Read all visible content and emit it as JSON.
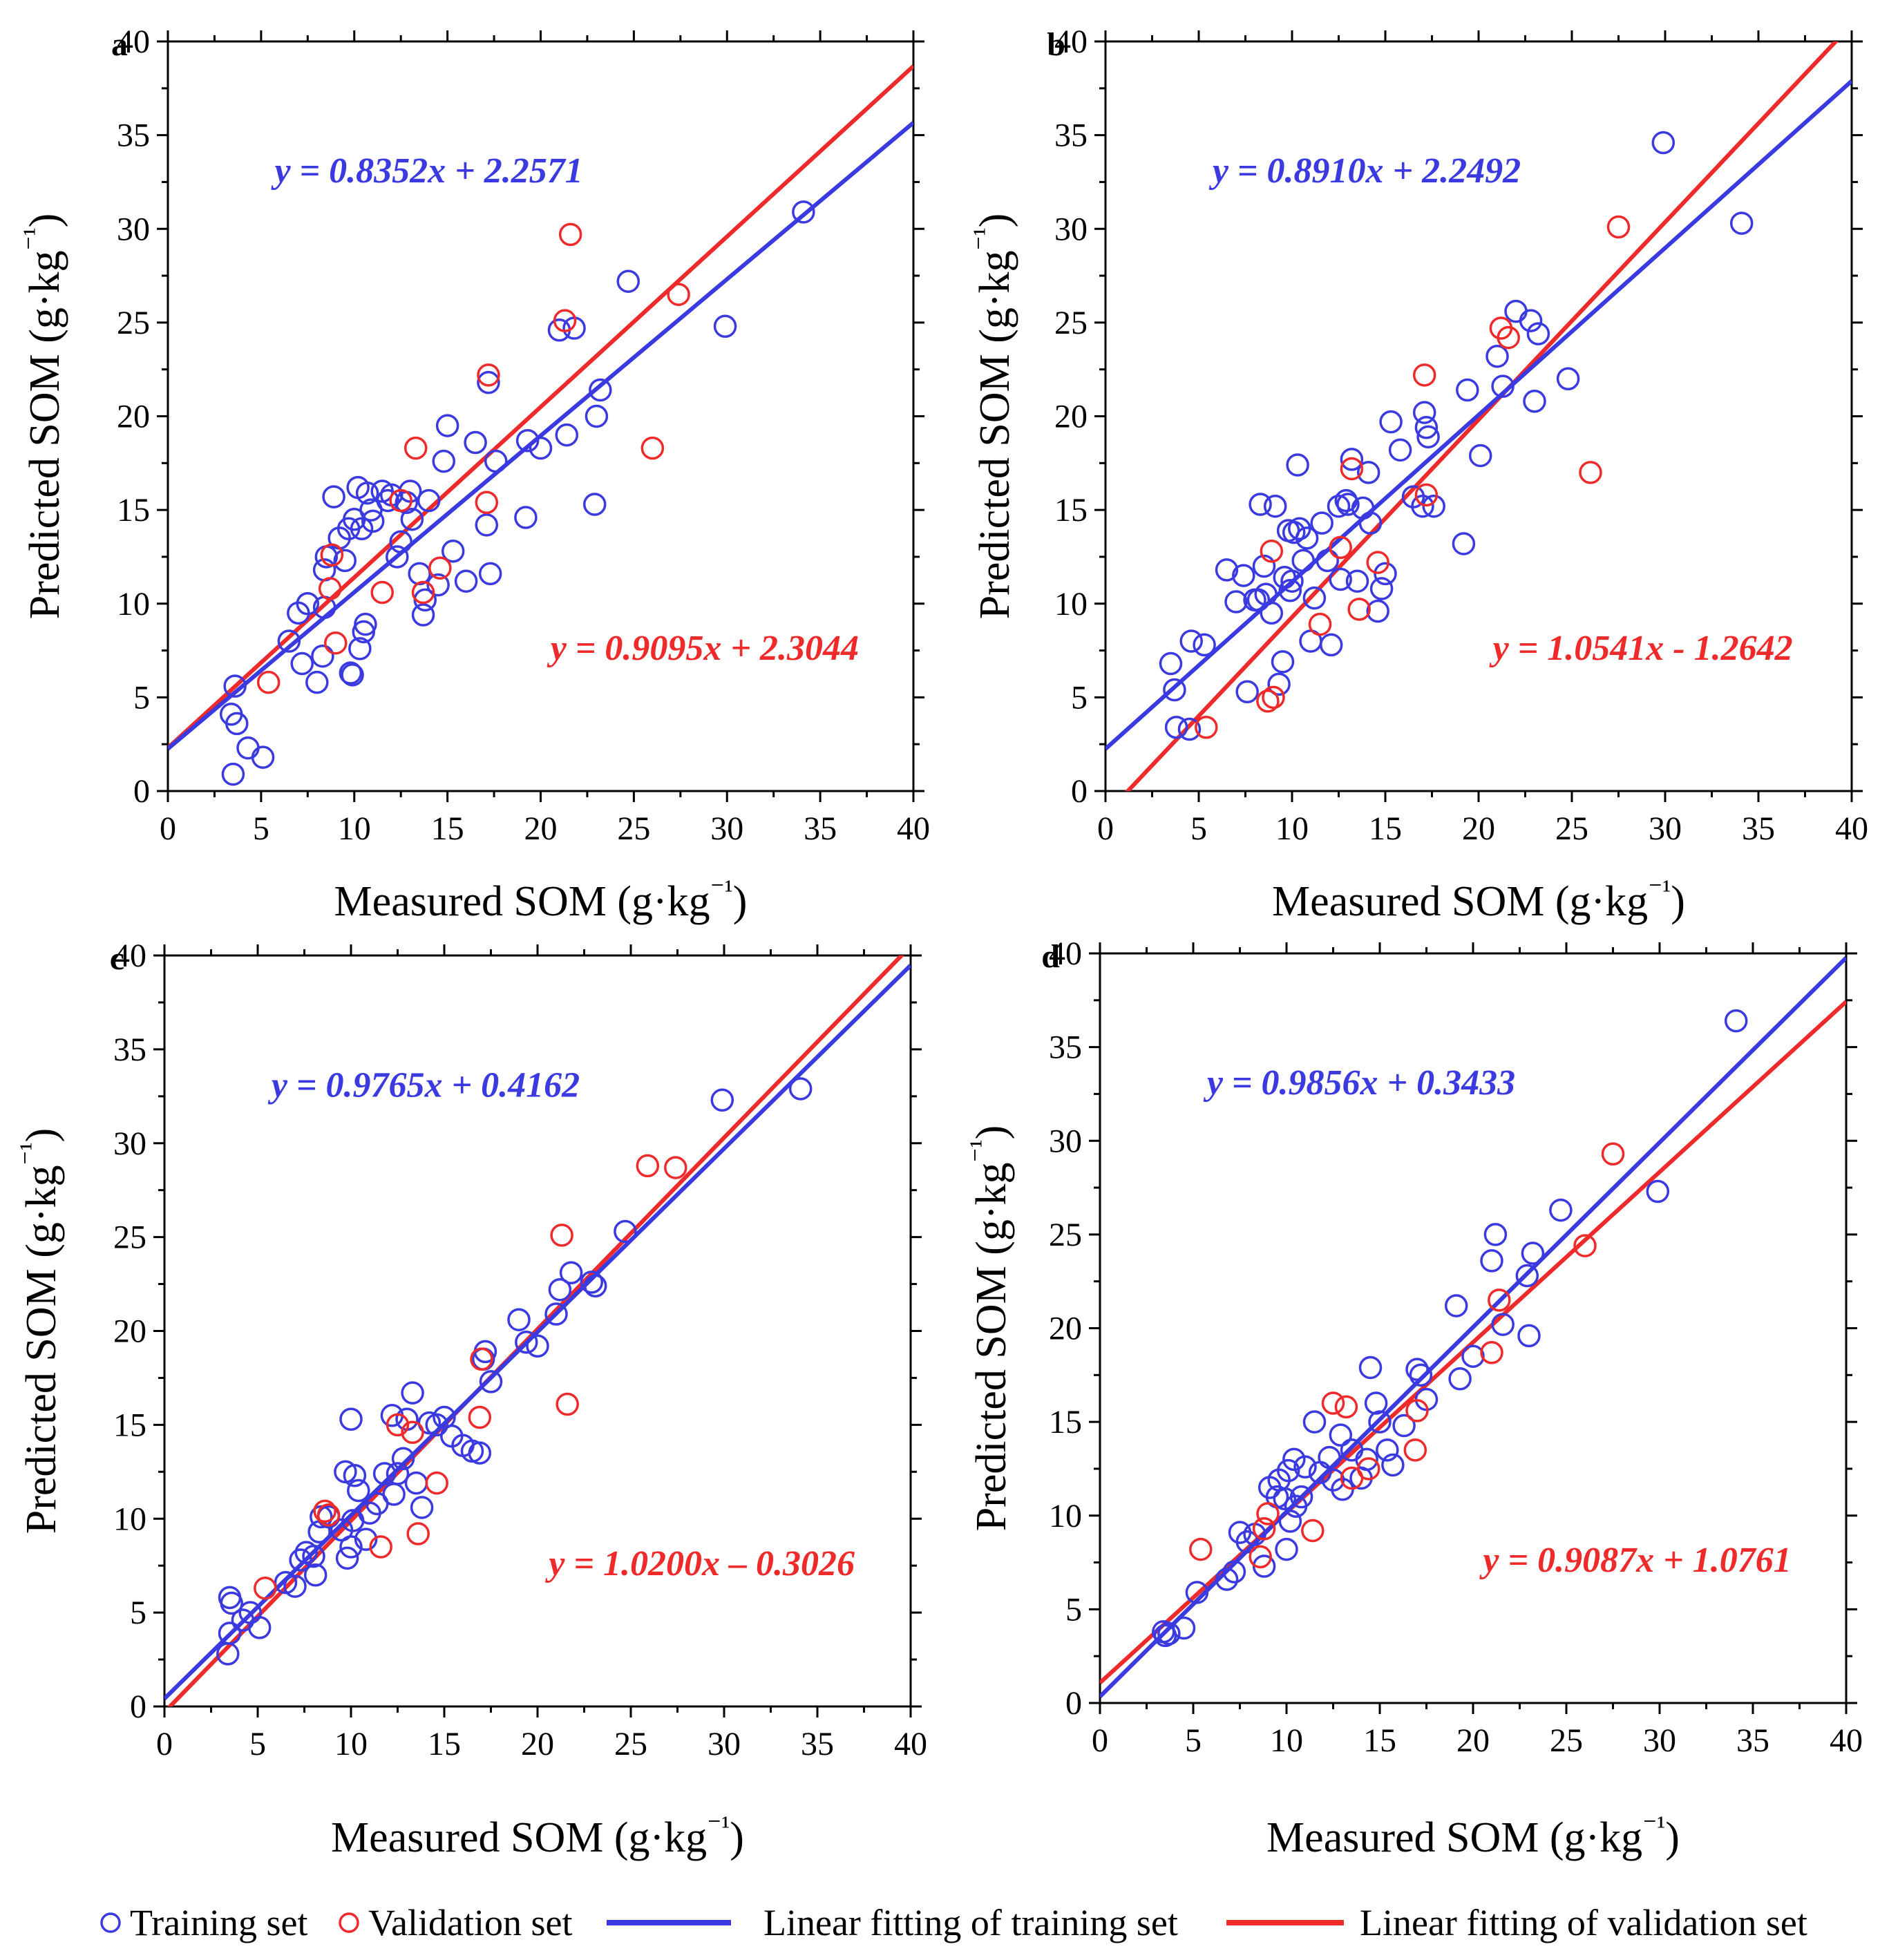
{
  "legend": {
    "training_label": "Training set",
    "validation_label": "Validation set",
    "fit_training_label": "Linear fitting of training set",
    "fit_validation_label": "Linear fitting of validation set"
  },
  "colors": {
    "training": "#3a3ae0",
    "validation": "#ee2a2a",
    "axes": "#000000"
  },
  "chart_data": [
    {
      "panel": "a",
      "type": "scatter",
      "xlabel": "Measured SOM (g·kg⁻¹)",
      "ylabel": "Predicted SOM (g·kg⁻¹)",
      "xlim": [
        0,
        40
      ],
      "ylim": [
        0,
        40
      ],
      "xticks": [
        0,
        5,
        10,
        15,
        20,
        25,
        30,
        35,
        40
      ],
      "yticks": [
        0,
        5,
        10,
        15,
        20,
        25,
        30,
        35,
        40
      ],
      "training_eq": "y = 0.8352x + 2.2571",
      "training_fit": {
        "slope": 0.8352,
        "intercept": 2.2571
      },
      "validation_eq": "y = 0.9095x + 2.3044",
      "validation_fit": {
        "slope": 0.9095,
        "intercept": 2.3044
      },
      "training_points": [
        [
          3.5,
          0.9
        ],
        [
          3.4,
          4.1
        ],
        [
          3.6,
          5.6
        ],
        [
          3.7,
          3.6
        ],
        [
          4.3,
          2.3
        ],
        [
          5.1,
          1.8
        ],
        [
          6.5,
          8.0
        ],
        [
          7.0,
          9.5
        ],
        [
          7.5,
          10.0
        ],
        [
          7.2,
          6.8
        ],
        [
          8.0,
          5.8
        ],
        [
          8.3,
          7.2
        ],
        [
          8.4,
          9.8
        ],
        [
          8.5,
          12.5
        ],
        [
          8.4,
          11.8
        ],
        [
          8.9,
          15.7
        ],
        [
          9.2,
          13.5
        ],
        [
          9.5,
          12.3
        ],
        [
          9.7,
          14.0
        ],
        [
          9.8,
          6.3
        ],
        [
          9.9,
          6.2
        ],
        [
          10.0,
          14.5
        ],
        [
          10.2,
          16.2
        ],
        [
          10.3,
          7.6
        ],
        [
          10.4,
          14.0
        ],
        [
          10.5,
          8.5
        ],
        [
          10.6,
          8.9
        ],
        [
          10.7,
          15.9
        ],
        [
          10.9,
          15.0
        ],
        [
          11.0,
          14.4
        ],
        [
          11.5,
          16.0
        ],
        [
          11.8,
          15.5
        ],
        [
          12.0,
          15.8
        ],
        [
          12.3,
          12.5
        ],
        [
          12.5,
          13.3
        ],
        [
          12.8,
          15.4
        ],
        [
          13.0,
          16.0
        ],
        [
          13.1,
          14.5
        ],
        [
          13.5,
          11.6
        ],
        [
          13.7,
          9.4
        ],
        [
          13.8,
          10.2
        ],
        [
          14.0,
          15.5
        ],
        [
          14.5,
          11.0
        ],
        [
          14.8,
          17.6
        ],
        [
          15.0,
          19.5
        ],
        [
          15.3,
          12.8
        ],
        [
          16.0,
          11.2
        ],
        [
          16.5,
          18.6
        ],
        [
          17.1,
          14.2
        ],
        [
          17.2,
          21.8
        ],
        [
          17.3,
          11.6
        ],
        [
          17.6,
          17.6
        ],
        [
          19.2,
          14.6
        ],
        [
          19.3,
          18.7
        ],
        [
          20.0,
          18.3
        ],
        [
          21.0,
          24.6
        ],
        [
          21.4,
          19.0
        ],
        [
          21.8,
          24.7
        ],
        [
          22.9,
          15.3
        ],
        [
          23.0,
          20.0
        ],
        [
          23.2,
          21.4
        ],
        [
          24.7,
          27.2
        ],
        [
          29.9,
          24.8
        ],
        [
          34.1,
          30.9
        ]
      ],
      "validation_points": [
        [
          5.4,
          5.8
        ],
        [
          8.8,
          12.6
        ],
        [
          9.0,
          7.9
        ],
        [
          8.7,
          10.8
        ],
        [
          11.5,
          10.6
        ],
        [
          12.5,
          15.5
        ],
        [
          13.3,
          18.3
        ],
        [
          13.7,
          10.6
        ],
        [
          14.6,
          11.9
        ],
        [
          17.1,
          15.4
        ],
        [
          17.2,
          22.2
        ],
        [
          21.3,
          25.1
        ],
        [
          21.6,
          29.7
        ],
        [
          26.0,
          18.3
        ],
        [
          27.4,
          26.5
        ]
      ]
    },
    {
      "panel": "b",
      "type": "scatter",
      "xlabel": "Measured SOM (g·kg⁻¹)",
      "ylabel": "Predicted SOM (g·kg⁻¹)",
      "xlim": [
        0,
        40
      ],
      "ylim": [
        0,
        40
      ],
      "xticks": [
        0,
        5,
        10,
        15,
        20,
        25,
        30,
        35,
        40
      ],
      "yticks": [
        0,
        5,
        10,
        15,
        20,
        25,
        30,
        35,
        40
      ],
      "training_eq": "y = 0.8910x + 2.2492",
      "training_fit": {
        "slope": 0.891,
        "intercept": 2.2492
      },
      "validation_eq": "y = 1.0541x - 1.2642",
      "validation_fit": {
        "slope": 1.0541,
        "intercept": -1.2642
      },
      "training_points": [
        [
          3.5,
          6.8
        ],
        [
          3.7,
          5.4
        ],
        [
          3.8,
          3.4
        ],
        [
          4.5,
          3.3
        ],
        [
          4.6,
          8.0
        ],
        [
          5.3,
          7.8
        ],
        [
          6.5,
          11.8
        ],
        [
          7.0,
          10.1
        ],
        [
          7.4,
          11.5
        ],
        [
          7.6,
          5.3
        ],
        [
          8.0,
          10.2
        ],
        [
          8.2,
          10.2
        ],
        [
          8.3,
          15.3
        ],
        [
          8.5,
          12.0
        ],
        [
          8.6,
          10.5
        ],
        [
          8.9,
          9.5
        ],
        [
          9.1,
          15.2
        ],
        [
          9.3,
          5.7
        ],
        [
          9.5,
          6.9
        ],
        [
          9.6,
          11.4
        ],
        [
          9.8,
          13.9
        ],
        [
          9.9,
          10.7
        ],
        [
          10.0,
          11.2
        ],
        [
          10.1,
          13.8
        ],
        [
          10.3,
          17.4
        ],
        [
          10.4,
          14.0
        ],
        [
          10.6,
          12.3
        ],
        [
          10.8,
          13.5
        ],
        [
          11.0,
          8.0
        ],
        [
          11.2,
          10.3
        ],
        [
          11.6,
          14.3
        ],
        [
          11.9,
          12.3
        ],
        [
          12.1,
          7.8
        ],
        [
          12.5,
          15.2
        ],
        [
          12.6,
          11.3
        ],
        [
          12.9,
          15.5
        ],
        [
          13.0,
          15.3
        ],
        [
          13.2,
          17.7
        ],
        [
          13.5,
          11.2
        ],
        [
          13.8,
          15.1
        ],
        [
          14.1,
          17.0
        ],
        [
          14.2,
          14.3
        ],
        [
          14.6,
          9.6
        ],
        [
          14.8,
          10.8
        ],
        [
          15.0,
          11.6
        ],
        [
          15.3,
          19.7
        ],
        [
          15.8,
          18.2
        ],
        [
          16.5,
          15.7
        ],
        [
          17.0,
          15.2
        ],
        [
          17.1,
          20.2
        ],
        [
          17.2,
          19.4
        ],
        [
          17.3,
          18.9
        ],
        [
          17.6,
          15.2
        ],
        [
          19.2,
          13.2
        ],
        [
          19.4,
          21.4
        ],
        [
          20.1,
          17.9
        ],
        [
          21.0,
          23.2
        ],
        [
          21.3,
          21.6
        ],
        [
          22.0,
          25.6
        ],
        [
          22.8,
          25.1
        ],
        [
          23.0,
          20.8
        ],
        [
          23.2,
          24.4
        ],
        [
          24.8,
          22.0
        ],
        [
          29.9,
          34.6
        ],
        [
          34.1,
          30.3
        ]
      ],
      "validation_points": [
        [
          5.4,
          3.4
        ],
        [
          8.7,
          4.8
        ],
        [
          9.0,
          5.0
        ],
        [
          8.9,
          12.8
        ],
        [
          11.5,
          8.9
        ],
        [
          12.6,
          13.0
        ],
        [
          13.2,
          17.2
        ],
        [
          13.6,
          9.7
        ],
        [
          14.6,
          12.2
        ],
        [
          17.1,
          22.2
        ],
        [
          17.2,
          15.8
        ],
        [
          21.2,
          24.7
        ],
        [
          21.6,
          24.2
        ],
        [
          26.0,
          17.0
        ],
        [
          27.5,
          30.1
        ]
      ]
    },
    {
      "panel": "c",
      "type": "scatter",
      "xlabel": "Measured SOM (g·kg⁻¹)",
      "ylabel": "Predicted SOM (g·kg⁻¹)",
      "xlim": [
        0,
        40
      ],
      "ylim": [
        0,
        40
      ],
      "xticks": [
        0,
        5,
        10,
        15,
        20,
        25,
        30,
        35,
        40
      ],
      "yticks": [
        0,
        5,
        10,
        15,
        20,
        25,
        30,
        35,
        40
      ],
      "training_eq": "y = 0.9765x + 0.4162",
      "training_fit": {
        "slope": 0.9765,
        "intercept": 0.4162
      },
      "validation_eq": "y = 1.0200x – 0.3026",
      "validation_fit": {
        "slope": 1.02,
        "intercept": -0.3026
      },
      "training_points": [
        [
          3.4,
          2.8
        ],
        [
          3.5,
          3.9
        ],
        [
          3.5,
          5.8
        ],
        [
          3.6,
          5.5
        ],
        [
          4.2,
          4.6
        ],
        [
          4.6,
          5.0
        ],
        [
          5.1,
          4.2
        ],
        [
          6.5,
          6.6
        ],
        [
          7.0,
          6.4
        ],
        [
          7.3,
          7.8
        ],
        [
          7.6,
          8.2
        ],
        [
          8.0,
          8.0
        ],
        [
          8.1,
          7.0
        ],
        [
          8.3,
          9.3
        ],
        [
          8.4,
          10.1
        ],
        [
          8.8,
          10.1
        ],
        [
          9.5,
          9.4
        ],
        [
          9.7,
          12.5
        ],
        [
          9.8,
          7.9
        ],
        [
          10.0,
          8.5
        ],
        [
          10.0,
          15.3
        ],
        [
          10.1,
          9.9
        ],
        [
          10.2,
          12.3
        ],
        [
          10.4,
          11.5
        ],
        [
          10.8,
          8.9
        ],
        [
          11.0,
          10.3
        ],
        [
          11.4,
          10.8
        ],
        [
          11.8,
          12.4
        ],
        [
          12.2,
          15.5
        ],
        [
          12.3,
          11.3
        ],
        [
          12.5,
          12.4
        ],
        [
          12.8,
          13.2
        ],
        [
          13.0,
          15.3
        ],
        [
          13.3,
          16.7
        ],
        [
          13.5,
          11.9
        ],
        [
          13.8,
          10.6
        ],
        [
          14.2,
          15.1
        ],
        [
          14.6,
          15.0
        ],
        [
          15.0,
          15.4
        ],
        [
          15.4,
          14.4
        ],
        [
          16.0,
          13.9
        ],
        [
          16.5,
          13.6
        ],
        [
          16.9,
          13.5
        ],
        [
          17.1,
          18.5
        ],
        [
          17.2,
          18.9
        ],
        [
          17.5,
          17.3
        ],
        [
          19.0,
          20.6
        ],
        [
          19.4,
          19.4
        ],
        [
          20.0,
          19.2
        ],
        [
          21.0,
          20.9
        ],
        [
          21.2,
          22.2
        ],
        [
          21.8,
          23.1
        ],
        [
          22.9,
          22.6
        ],
        [
          23.1,
          22.4
        ],
        [
          24.7,
          25.3
        ],
        [
          29.9,
          32.3
        ],
        [
          34.1,
          32.9
        ]
      ],
      "validation_points": [
        [
          5.4,
          6.3
        ],
        [
          8.6,
          10.4
        ],
        [
          8.8,
          10.2
        ],
        [
          11.6,
          8.5
        ],
        [
          12.5,
          15.0
        ],
        [
          13.3,
          14.6
        ],
        [
          13.6,
          9.2
        ],
        [
          14.6,
          11.9
        ],
        [
          16.9,
          15.4
        ],
        [
          17.0,
          18.5
        ],
        [
          21.3,
          25.1
        ],
        [
          21.6,
          16.1
        ],
        [
          25.9,
          28.8
        ],
        [
          27.4,
          28.7
        ]
      ]
    },
    {
      "panel": "d",
      "type": "scatter",
      "xlabel": "Measured SOM (g·kg⁻¹)",
      "ylabel": "Predicted SOM (g·kg⁻¹)",
      "xlim": [
        0,
        40
      ],
      "ylim": [
        0,
        40
      ],
      "xticks": [
        0,
        5,
        10,
        15,
        20,
        25,
        30,
        35,
        40
      ],
      "yticks": [
        0,
        5,
        10,
        15,
        20,
        25,
        30,
        35,
        40
      ],
      "training_eq": "y = 0.9856x + 0.3433",
      "training_fit": {
        "slope": 0.9856,
        "intercept": 0.3433
      },
      "validation_eq": "y = 0.9087x + 1.0761",
      "validation_fit": {
        "slope": 0.9087,
        "intercept": 1.0761
      },
      "training_points": [
        [
          3.4,
          3.8
        ],
        [
          3.5,
          3.6
        ],
        [
          3.7,
          3.7
        ],
        [
          4.5,
          4.0
        ],
        [
          5.2,
          5.9
        ],
        [
          6.8,
          6.6
        ],
        [
          7.2,
          7.0
        ],
        [
          7.5,
          9.1
        ],
        [
          7.9,
          8.6
        ],
        [
          8.3,
          9.0
        ],
        [
          8.8,
          7.3
        ],
        [
          9.1,
          11.5
        ],
        [
          9.5,
          11.0
        ],
        [
          9.6,
          11.9
        ],
        [
          9.9,
          10.9
        ],
        [
          10.0,
          8.2
        ],
        [
          10.1,
          12.4
        ],
        [
          10.2,
          9.7
        ],
        [
          10.4,
          13.0
        ],
        [
          10.5,
          10.5
        ],
        [
          10.8,
          11.0
        ],
        [
          11.0,
          12.6
        ],
        [
          11.5,
          15.0
        ],
        [
          11.8,
          12.3
        ],
        [
          12.3,
          13.1
        ],
        [
          12.5,
          11.9
        ],
        [
          12.9,
          14.3
        ],
        [
          13.0,
          11.4
        ],
        [
          13.5,
          13.5
        ],
        [
          14.0,
          12.0
        ],
        [
          14.3,
          13.0
        ],
        [
          14.5,
          17.9
        ],
        [
          14.8,
          16.0
        ],
        [
          15.0,
          15.0
        ],
        [
          15.4,
          13.5
        ],
        [
          15.7,
          12.7
        ],
        [
          16.3,
          14.8
        ],
        [
          17.0,
          17.8
        ],
        [
          17.2,
          17.5
        ],
        [
          17.5,
          16.2
        ],
        [
          19.1,
          21.2
        ],
        [
          19.3,
          17.3
        ],
        [
          20.0,
          18.5
        ],
        [
          21.0,
          23.6
        ],
        [
          21.2,
          25.0
        ],
        [
          21.6,
          20.2
        ],
        [
          22.9,
          22.8
        ],
        [
          23.0,
          19.6
        ],
        [
          23.2,
          24.0
        ],
        [
          24.7,
          26.3
        ],
        [
          29.9,
          27.3
        ],
        [
          34.1,
          36.4
        ]
      ],
      "validation_points": [
        [
          5.4,
          8.2
        ],
        [
          8.6,
          7.8
        ],
        [
          8.8,
          9.3
        ],
        [
          9.0,
          10.1
        ],
        [
          11.4,
          9.2
        ],
        [
          12.5,
          16.0
        ],
        [
          13.2,
          15.8
        ],
        [
          13.5,
          12.0
        ],
        [
          14.4,
          12.5
        ],
        [
          16.9,
          13.5
        ],
        [
          17.0,
          15.6
        ],
        [
          21.0,
          18.7
        ],
        [
          21.4,
          21.5
        ],
        [
          26.0,
          24.4
        ],
        [
          27.5,
          29.3
        ]
      ]
    }
  ]
}
